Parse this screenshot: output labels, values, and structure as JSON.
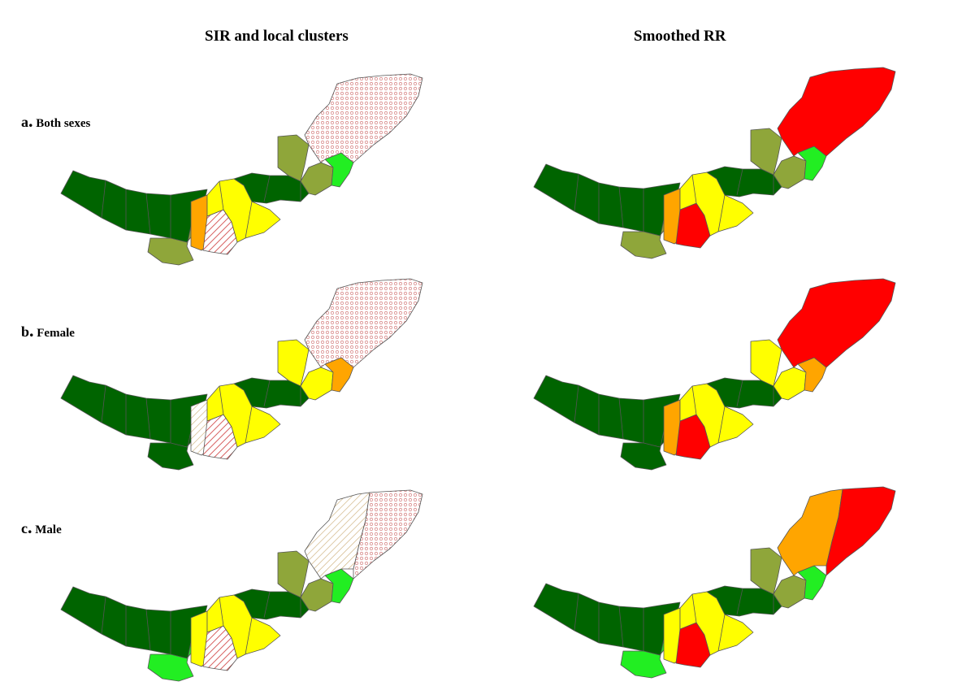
{
  "titles": {
    "left": "SIR and local clusters",
    "right": "Smoothed RR"
  },
  "rows": [
    {
      "letter": "a",
      "label": "Both sexes"
    },
    {
      "letter": "b",
      "label": "Female"
    },
    {
      "letter": "c",
      "label": "Male"
    }
  ],
  "colors": {
    "dark_green": "#006400",
    "olive": "#8fa63a",
    "light_green": "#22ee22",
    "yellow": "#ffff00",
    "orange": "#ffa500",
    "red": "#ff0000",
    "hatch_red": "#cc3333",
    "hatch_tan": "#c8a86e"
  },
  "maps": {
    "a_left": {
      "west": "dark_green",
      "sw": "olive",
      "strip": "orange",
      "center_south": "hatch-red",
      "center": "yellow",
      "north_center": "dark_green",
      "nw_ne": "olive",
      "east_small": "light_green",
      "northeast": "hatch-pink"
    },
    "a_right": {
      "west": "dark_green",
      "sw": "olive",
      "strip": "orange",
      "center_south": "red",
      "center": "yellow",
      "north_center": "dark_green",
      "nw_ne": "olive",
      "east_small": "light_green",
      "northeast": "red"
    },
    "b_left": {
      "west": "dark_green",
      "sw": "dark_green",
      "strip": "hatch-tan",
      "center_south": "hatch-red",
      "center": "yellow",
      "north_center": "dark_green",
      "nw_ne": "yellow",
      "east_small": "orange",
      "northeast": "hatch-pink"
    },
    "b_right": {
      "west": "dark_green",
      "sw": "dark_green",
      "strip": "orange",
      "center_south": "red",
      "center": "yellow",
      "north_center": "dark_green",
      "nw_ne": "yellow",
      "east_small": "orange",
      "northeast": "red"
    },
    "c_left": {
      "west": "dark_green",
      "sw": "light_green",
      "strip": "yellow",
      "center_south": "hatch-red",
      "center": "yellow",
      "north_center": "dark_green",
      "nw_ne": "olive",
      "east_small": "light_green",
      "northeast": "hatch-split"
    },
    "c_right": {
      "west": "dark_green",
      "sw": "light_green",
      "strip": "yellow",
      "center_south": "red",
      "center": "yellow",
      "north_center": "dark_green",
      "nw_ne": "olive",
      "east_small": "light_green",
      "northeast": "orange-red"
    }
  }
}
